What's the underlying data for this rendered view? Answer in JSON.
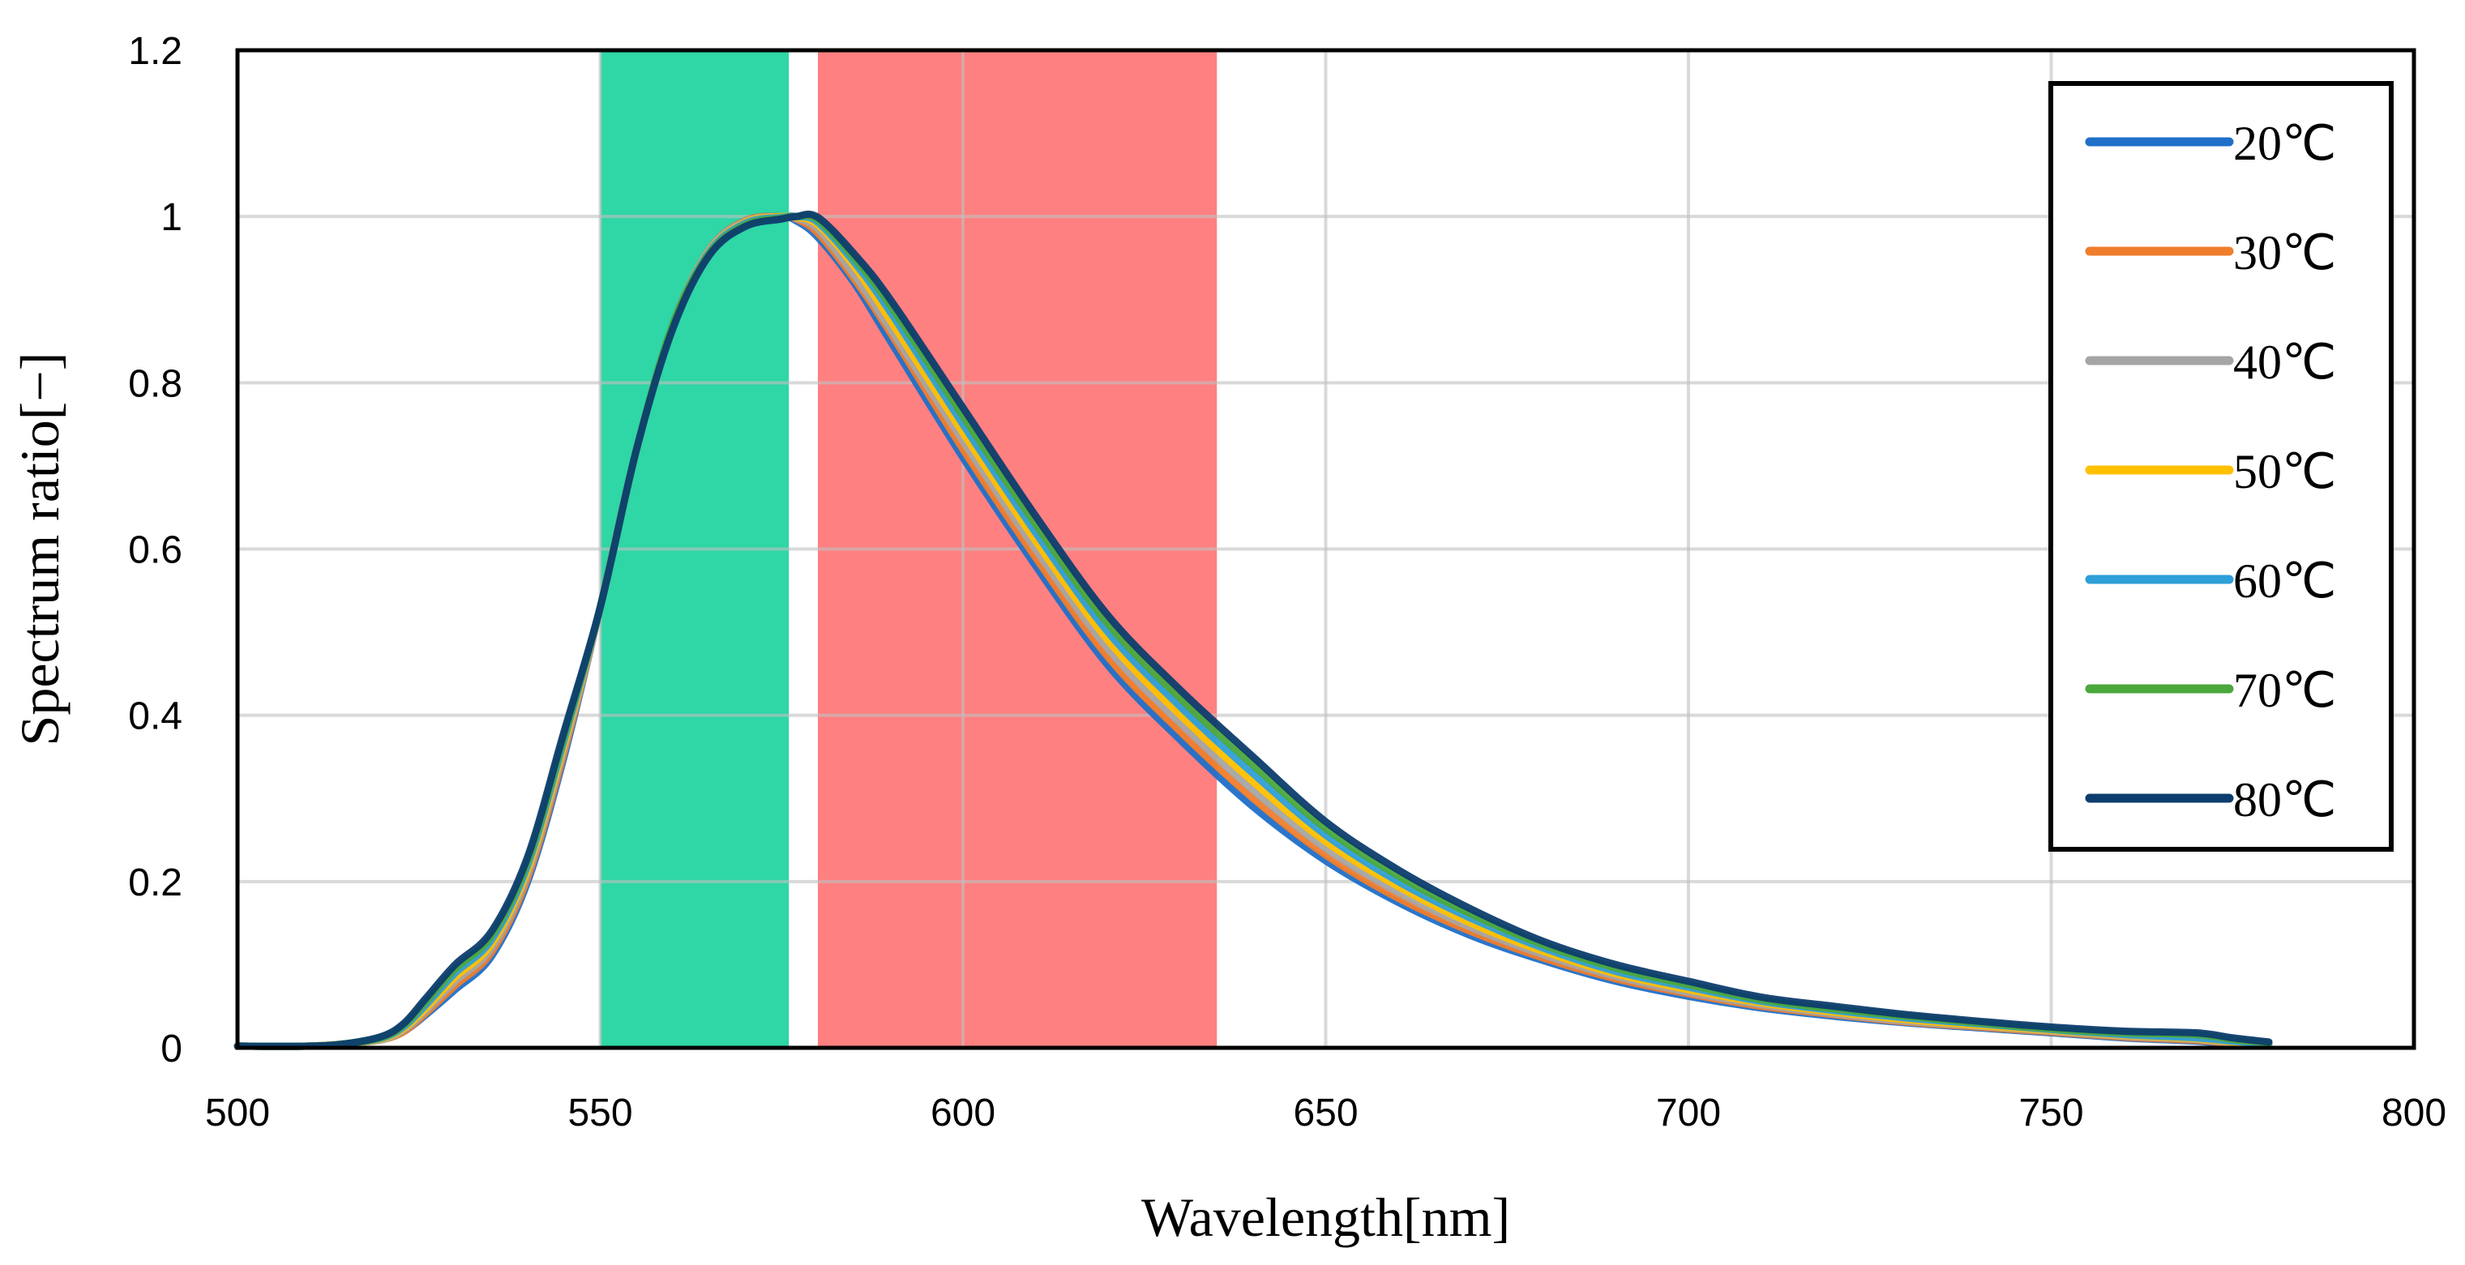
{
  "chart_data": {
    "type": "line",
    "title": "",
    "xlabel": "Wavelength[nm]",
    "ylabel": "Spectrum ratio[−]",
    "xlim": [
      500,
      800
    ],
    "ylim": [
      0,
      1.2
    ],
    "x_ticks": [
      500,
      550,
      600,
      650,
      700,
      750,
      800
    ],
    "y_ticks": [
      0,
      0.2,
      0.4,
      0.6,
      0.8,
      1,
      1.2
    ],
    "x_tick_labels": [
      "500",
      "550",
      "600",
      "650",
      "700",
      "750",
      "800"
    ],
    "y_tick_labels": [
      "0",
      "0.2",
      "0.4",
      "0.6",
      "0.8",
      "1",
      "1.2"
    ],
    "grid": true,
    "legend_position": "top-right",
    "bands": [
      {
        "name": "green-band",
        "x_start": 550,
        "x_end": 576,
        "color": "#2fd6a6"
      },
      {
        "name": "red-band",
        "x_start": 580,
        "x_end": 635,
        "color": "#ff8080"
      }
    ],
    "series": [
      {
        "name": "20℃",
        "color": "#1f6fc8",
        "x": [
          500,
          510,
          515,
          520,
          523,
          526,
          530,
          535,
          540,
          545,
          550,
          555,
          560,
          565,
          570,
          575,
          577,
          580,
          585,
          590,
          600,
          610,
          620,
          630,
          640,
          650,
          660,
          670,
          680,
          690,
          700,
          710,
          720,
          730,
          740,
          750,
          760,
          770,
          775,
          780
        ],
        "y": [
          0.002,
          0.002,
          0.005,
          0.01,
          0.02,
          0.04,
          0.07,
          0.11,
          0.2,
          0.35,
          0.53,
          0.72,
          0.87,
          0.96,
          0.995,
          1.0,
          0.995,
          0.975,
          0.92,
          0.85,
          0.71,
          0.58,
          0.46,
          0.37,
          0.29,
          0.225,
          0.175,
          0.135,
          0.105,
          0.08,
          0.062,
          0.048,
          0.038,
          0.03,
          0.024,
          0.018,
          0.012,
          0.008,
          0.004,
          0.002
        ]
      },
      {
        "name": "30℃",
        "color": "#f07d2b",
        "x": [
          500,
          510,
          515,
          520,
          523,
          526,
          530,
          535,
          540,
          545,
          550,
          555,
          560,
          565,
          570,
          575,
          577,
          580,
          585,
          590,
          600,
          610,
          620,
          630,
          640,
          650,
          660,
          670,
          680,
          690,
          700,
          710,
          720,
          730,
          740,
          750,
          760,
          770,
          775,
          780
        ],
        "y": [
          0.002,
          0.002,
          0.005,
          0.01,
          0.02,
          0.042,
          0.075,
          0.115,
          0.205,
          0.355,
          0.53,
          0.72,
          0.87,
          0.96,
          0.995,
          1.0,
          0.997,
          0.98,
          0.925,
          0.86,
          0.72,
          0.59,
          0.47,
          0.38,
          0.3,
          0.232,
          0.18,
          0.14,
          0.108,
          0.083,
          0.065,
          0.05,
          0.04,
          0.031,
          0.025,
          0.019,
          0.013,
          0.009,
          0.005,
          0.003
        ]
      },
      {
        "name": "40℃",
        "color": "#a5a5a5",
        "x": [
          500,
          510,
          515,
          520,
          523,
          526,
          530,
          535,
          540,
          545,
          550,
          555,
          560,
          565,
          570,
          575,
          577,
          580,
          585,
          590,
          600,
          610,
          620,
          630,
          640,
          650,
          660,
          670,
          680,
          690,
          700,
          710,
          720,
          730,
          740,
          750,
          760,
          770,
          775,
          780
        ],
        "y": [
          0.002,
          0.002,
          0.005,
          0.01,
          0.022,
          0.045,
          0.08,
          0.12,
          0.21,
          0.36,
          0.53,
          0.72,
          0.87,
          0.96,
          0.994,
          1.0,
          0.998,
          0.985,
          0.93,
          0.865,
          0.73,
          0.6,
          0.48,
          0.39,
          0.31,
          0.24,
          0.187,
          0.145,
          0.112,
          0.086,
          0.067,
          0.052,
          0.041,
          0.032,
          0.026,
          0.02,
          0.014,
          0.01,
          0.006,
          0.003
        ]
      },
      {
        "name": "50℃",
        "color": "#ffc000",
        "x": [
          500,
          510,
          515,
          520,
          523,
          526,
          530,
          535,
          540,
          545,
          550,
          555,
          560,
          565,
          570,
          575,
          577,
          580,
          585,
          590,
          600,
          610,
          620,
          630,
          640,
          650,
          660,
          670,
          680,
          690,
          700,
          710,
          720,
          730,
          740,
          750,
          760,
          770,
          775,
          780
        ],
        "y": [
          0.002,
          0.002,
          0.005,
          0.011,
          0.024,
          0.048,
          0.085,
          0.125,
          0.215,
          0.365,
          0.53,
          0.72,
          0.87,
          0.958,
          0.993,
          1.0,
          0.999,
          0.99,
          0.94,
          0.875,
          0.74,
          0.61,
          0.49,
          0.4,
          0.32,
          0.248,
          0.194,
          0.15,
          0.116,
          0.089,
          0.07,
          0.054,
          0.043,
          0.034,
          0.027,
          0.021,
          0.015,
          0.011,
          0.007,
          0.004
        ]
      },
      {
        "name": "60℃",
        "color": "#2e9fd8",
        "x": [
          500,
          510,
          515,
          520,
          523,
          526,
          530,
          535,
          540,
          545,
          550,
          555,
          560,
          565,
          570,
          575,
          577,
          580,
          585,
          590,
          600,
          610,
          620,
          630,
          640,
          650,
          660,
          670,
          680,
          690,
          700,
          710,
          720,
          730,
          740,
          750,
          760,
          770,
          775,
          780
        ],
        "y": [
          0.002,
          0.002,
          0.005,
          0.012,
          0.026,
          0.052,
          0.09,
          0.13,
          0.22,
          0.37,
          0.53,
          0.72,
          0.87,
          0.957,
          0.992,
          0.999,
          1.0,
          0.993,
          0.945,
          0.885,
          0.75,
          0.62,
          0.5,
          0.41,
          0.33,
          0.256,
          0.2,
          0.156,
          0.12,
          0.092,
          0.073,
          0.056,
          0.045,
          0.036,
          0.029,
          0.022,
          0.016,
          0.012,
          0.008,
          0.005
        ]
      },
      {
        "name": "70℃",
        "color": "#4aa83c",
        "x": [
          500,
          510,
          515,
          520,
          523,
          526,
          530,
          535,
          540,
          545,
          550,
          555,
          560,
          565,
          570,
          575,
          577,
          580,
          585,
          590,
          600,
          610,
          620,
          630,
          640,
          650,
          660,
          670,
          680,
          690,
          700,
          710,
          720,
          730,
          740,
          750,
          760,
          770,
          775,
          780
        ],
        "y": [
          0.002,
          0.002,
          0.005,
          0.013,
          0.028,
          0.056,
          0.095,
          0.135,
          0.225,
          0.375,
          0.53,
          0.72,
          0.87,
          0.955,
          0.99,
          0.998,
          1.0,
          0.996,
          0.95,
          0.893,
          0.76,
          0.63,
          0.51,
          0.42,
          0.34,
          0.264,
          0.207,
          0.161,
          0.124,
          0.096,
          0.076,
          0.058,
          0.047,
          0.038,
          0.03,
          0.023,
          0.018,
          0.016,
          0.01,
          0.006
        ]
      },
      {
        "name": "80℃",
        "color": "#0d3d6e",
        "x": [
          500,
          510,
          515,
          520,
          523,
          526,
          530,
          535,
          540,
          545,
          550,
          555,
          560,
          565,
          570,
          575,
          577,
          580,
          585,
          590,
          600,
          610,
          620,
          630,
          640,
          650,
          660,
          670,
          680,
          690,
          700,
          710,
          720,
          730,
          740,
          750,
          760,
          770,
          775,
          780
        ],
        "y": [
          0.002,
          0.002,
          0.005,
          0.014,
          0.03,
          0.06,
          0.1,
          0.14,
          0.23,
          0.38,
          0.53,
          0.72,
          0.865,
          0.953,
          0.988,
          0.997,
          1.0,
          0.999,
          0.955,
          0.9,
          0.77,
          0.64,
          0.52,
          0.43,
          0.35,
          0.272,
          0.214,
          0.167,
          0.128,
          0.1,
          0.08,
          0.061,
          0.05,
          0.04,
          0.032,
          0.025,
          0.02,
          0.018,
          0.012,
          0.007
        ]
      }
    ]
  }
}
